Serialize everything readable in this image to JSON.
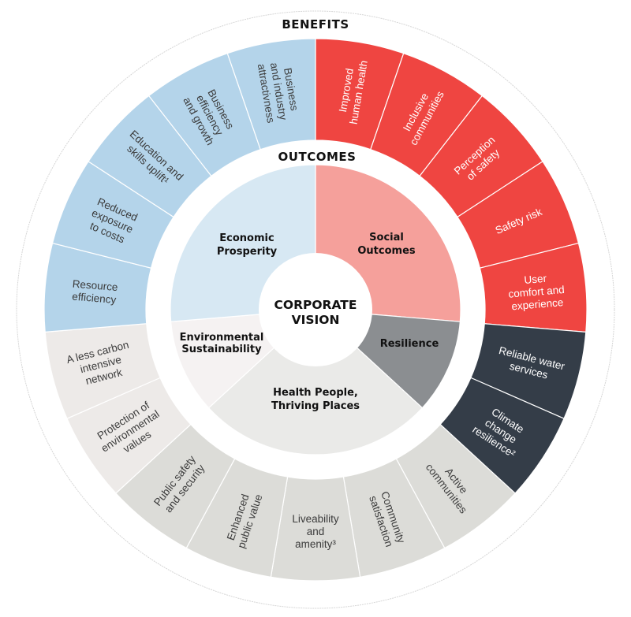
{
  "titles": {
    "benefits": "BENEFITS",
    "outcomes": "OUTCOMES",
    "core": [
      "CORPORATE",
      "VISION"
    ]
  },
  "colors": {
    "benefit_economic": "#b4d4ea",
    "benefit_social": "#ef4541",
    "benefit_resilience": "#343d48",
    "benefit_health": "#dcdcd8",
    "benefit_environment": "#edeae8",
    "outcome_economic": "#d7e8f3",
    "outcome_social": "#f5a09b",
    "outcome_resilience": "#8b8e91",
    "outcome_health": "#eaeae8",
    "outcome_environment": "#f5f2f2"
  },
  "outcomes": [
    {
      "id": "social",
      "lines": [
        "Social",
        "Outcomes"
      ],
      "color_key": "outcome_social"
    },
    {
      "id": "resilience",
      "lines": [
        "Resilience"
      ],
      "color_key": "outcome_resilience"
    },
    {
      "id": "health",
      "lines": [
        "Health People,",
        "Thriving Places"
      ],
      "color_key": "outcome_health"
    },
    {
      "id": "environment",
      "lines": [
        "Environmental",
        "Sustainability"
      ],
      "color_key": "outcome_environment"
    },
    {
      "id": "economic",
      "lines": [
        "Economic",
        "Prosperity"
      ],
      "color_key": "outcome_economic"
    }
  ],
  "benefits": [
    {
      "lines": [
        "Improved",
        "human health"
      ],
      "group": "social"
    },
    {
      "lines": [
        "Inclusive",
        "communities"
      ],
      "group": "social"
    },
    {
      "lines": [
        "Perception",
        "of safety"
      ],
      "group": "social"
    },
    {
      "lines": [
        "Safety risk"
      ],
      "group": "social"
    },
    {
      "lines": [
        "User",
        "comfort and",
        "experience"
      ],
      "group": "social"
    },
    {
      "lines": [
        "Reliable water",
        "services"
      ],
      "group": "resilience"
    },
    {
      "lines": [
        "Climate",
        "change",
        "resilience²"
      ],
      "group": "resilience"
    },
    {
      "lines": [
        "Active",
        "communities"
      ],
      "group": "health"
    },
    {
      "lines": [
        "Community",
        "satisfaction"
      ],
      "group": "health"
    },
    {
      "lines": [
        "Liveability",
        "and",
        "amenity³"
      ],
      "group": "health"
    },
    {
      "lines": [
        "Enhanced",
        "public value"
      ],
      "group": "health"
    },
    {
      "lines": [
        "Public safety",
        "and security"
      ],
      "group": "health"
    },
    {
      "lines": [
        "Protection of",
        "environmental",
        "values"
      ],
      "group": "environment"
    },
    {
      "lines": [
        "A less carbon",
        "intensive",
        "network"
      ],
      "group": "environment"
    },
    {
      "lines": [
        "Resource",
        "efficiency"
      ],
      "group": "economic"
    },
    {
      "lines": [
        "Reduced",
        "exposure",
        "to costs"
      ],
      "group": "economic"
    },
    {
      "lines": [
        "Education and",
        "skills uplift¹"
      ],
      "group": "economic"
    },
    {
      "lines": [
        "Business",
        "efficiency",
        "and growth"
      ],
      "group": "economic"
    },
    {
      "lines": [
        "Business",
        "and industry",
        "attractivness"
      ],
      "group": "economic"
    }
  ]
}
